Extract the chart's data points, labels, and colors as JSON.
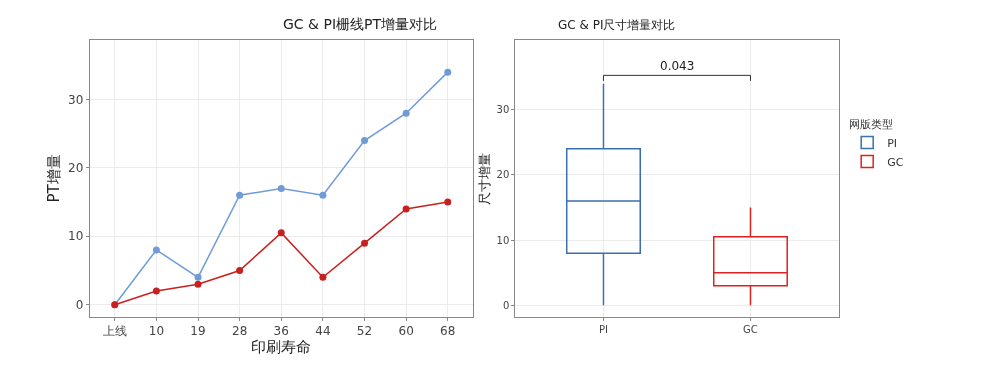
{
  "chart_data": [
    {
      "type": "line",
      "title": "GC & PI栅线PT增量对比",
      "xlabel": "印刷寿命",
      "ylabel": "PT增量",
      "categories": [
        "上线",
        "10",
        "19",
        "28",
        "36",
        "44",
        "52",
        "60",
        "68"
      ],
      "series": [
        {
          "color": "#6f9bd8",
          "values": [
            0,
            8,
            4,
            16,
            17,
            16,
            24,
            28,
            34
          ]
        },
        {
          "color": "#c8201e",
          "values": [
            0,
            2,
            3,
            5,
            10.5,
            4,
            9,
            14,
            15
          ]
        }
      ],
      "ylim": [
        -1.8,
        38.7
      ],
      "yticks": [
        0,
        10,
        20,
        30
      ],
      "grid": true,
      "legend": false,
      "marker": "circle",
      "line_style": "solid"
    },
    {
      "type": "box",
      "title": "GC & PI尺寸增量对比",
      "ylabel": "尺寸增量",
      "legend_title": "网版类型",
      "categories": [
        "PI",
        "GC"
      ],
      "series": [
        {
          "name": "PI",
          "color": "#3a6fb0",
          "boxes": [
            {
              "low": 0,
              "q1": 8,
              "median": 16,
              "q3": 24,
              "high": 34
            },
            null
          ]
        },
        {
          "name": "GC",
          "color": "#e0201e",
          "boxes": [
            null,
            {
              "low": 0,
              "q1": 3,
              "median": 5,
              "q3": 10.5,
              "high": 15
            }
          ]
        }
      ],
      "annotations": [
        "0.043"
      ],
      "ylim": [
        -1.8,
        40.7
      ],
      "yticks": [
        0,
        10,
        20,
        30
      ],
      "grid": true,
      "legend": "right"
    }
  ]
}
